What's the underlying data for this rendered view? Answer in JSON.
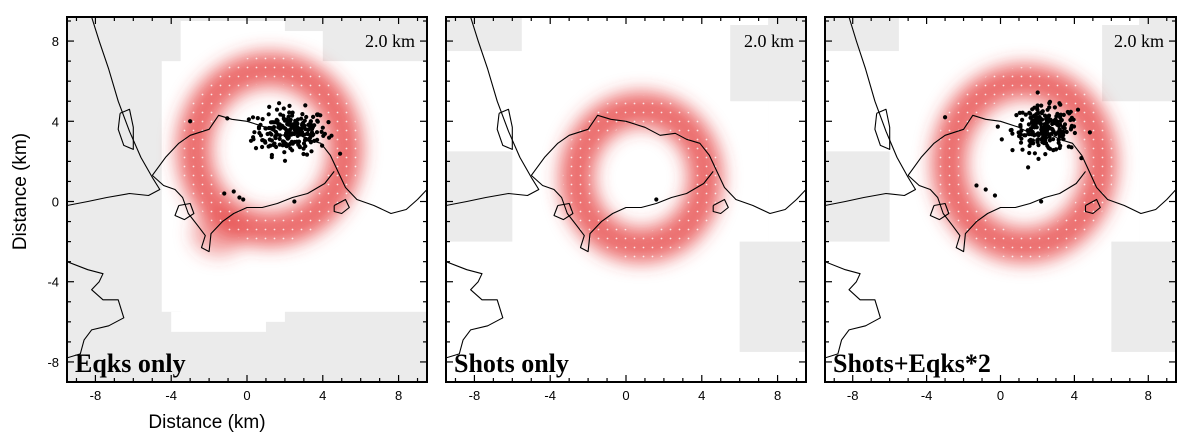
{
  "chart_data": [
    {
      "type": "heatmap",
      "panel_label": "Eqks only",
      "depth_label": "2.0 km",
      "xlabel": "Distance (km)",
      "ylabel": "Distance (km)",
      "xlim": [
        -9.5,
        9.5
      ],
      "ylim": [
        -9,
        9.2
      ],
      "xticks": [
        -8,
        -4,
        0,
        4,
        8
      ],
      "yticks": [
        -8,
        -4,
        0,
        4,
        8
      ],
      "coverage": "north-east",
      "anomaly_ring": {
        "center": [
          1.2,
          2.6
        ],
        "radius_km": 4.0
      },
      "anomaly_extra": [
        [
          -1.5,
          -1.6
        ]
      ],
      "earthquake_cluster": {
        "center": [
          2.3,
          3.5
        ],
        "spread_km": [
          1.2,
          0.7
        ],
        "count": 220
      },
      "isolated_events": [
        [
          -1.2,
          0.4
        ],
        [
          -0.7,
          0.5
        ],
        [
          -0.4,
          0.2
        ],
        [
          -0.2,
          0.1
        ],
        [
          2.5,
          0.0
        ],
        [
          -3.0,
          4.0
        ]
      ]
    },
    {
      "type": "heatmap",
      "panel_label": "Shots only",
      "depth_label": "2.0 km",
      "xlabel": "",
      "ylabel": "",
      "xlim": [
        -9.5,
        9.5
      ],
      "ylim": [
        -9,
        9.2
      ],
      "xticks": [
        -8,
        -4,
        0,
        4,
        8
      ],
      "yticks": [
        -8,
        -4,
        0,
        4,
        8
      ],
      "coverage": "central",
      "anomaly_ring": {
        "center": [
          0.8,
          1.2
        ],
        "radius_km": 3.4
      },
      "anomaly_extra": [],
      "earthquake_cluster": null,
      "isolated_events": [
        [
          1.6,
          0.1
        ]
      ]
    },
    {
      "type": "heatmap",
      "panel_label": "Shots+Eqks*2",
      "depth_label": "2.0 km",
      "xlabel": "",
      "ylabel": "",
      "xlim": [
        -9.5,
        9.5
      ],
      "ylim": [
        -9,
        9.2
      ],
      "xticks": [
        -8,
        -4,
        0,
        4,
        8
      ],
      "yticks": [
        -8,
        -4,
        0,
        4,
        8
      ],
      "coverage": "central",
      "anomaly_ring": {
        "center": [
          1.3,
          1.9
        ],
        "radius_km": 4.1
      },
      "anomaly_extra": [],
      "earthquake_cluster": {
        "center": [
          2.4,
          3.6
        ],
        "spread_km": [
          1.1,
          0.7
        ],
        "count": 220
      },
      "isolated_events": [
        [
          -1.3,
          0.8
        ],
        [
          -0.8,
          0.6
        ],
        [
          -0.3,
          0.3
        ],
        [
          2.2,
          0.0
        ],
        [
          -3.0,
          4.2
        ]
      ]
    }
  ],
  "colors": {
    "background_gray": "#ebebeb",
    "anomaly_red": "#e43b3b",
    "coastline": "#000000",
    "events": "#000000"
  }
}
